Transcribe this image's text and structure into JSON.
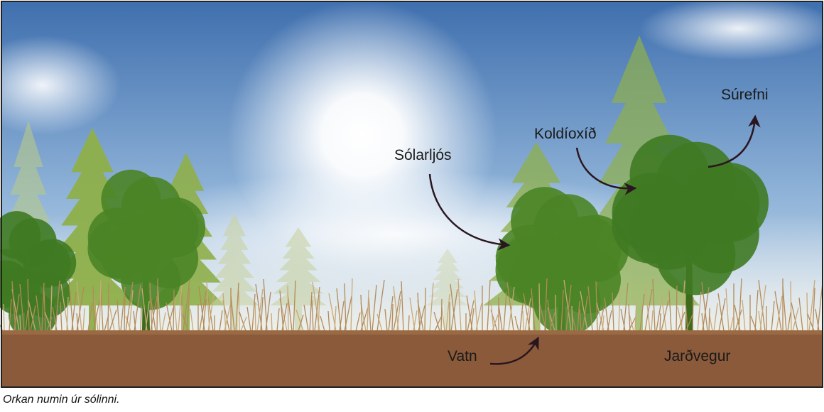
{
  "labels": {
    "sunlight": "Sólarljós",
    "carbon_dioxide": "Koldíoxíð",
    "oxygen": "Súrefni",
    "water": "Vatn",
    "soil": "Jarðvegur"
  },
  "caption": "Orkan numin úr sólinni."
}
